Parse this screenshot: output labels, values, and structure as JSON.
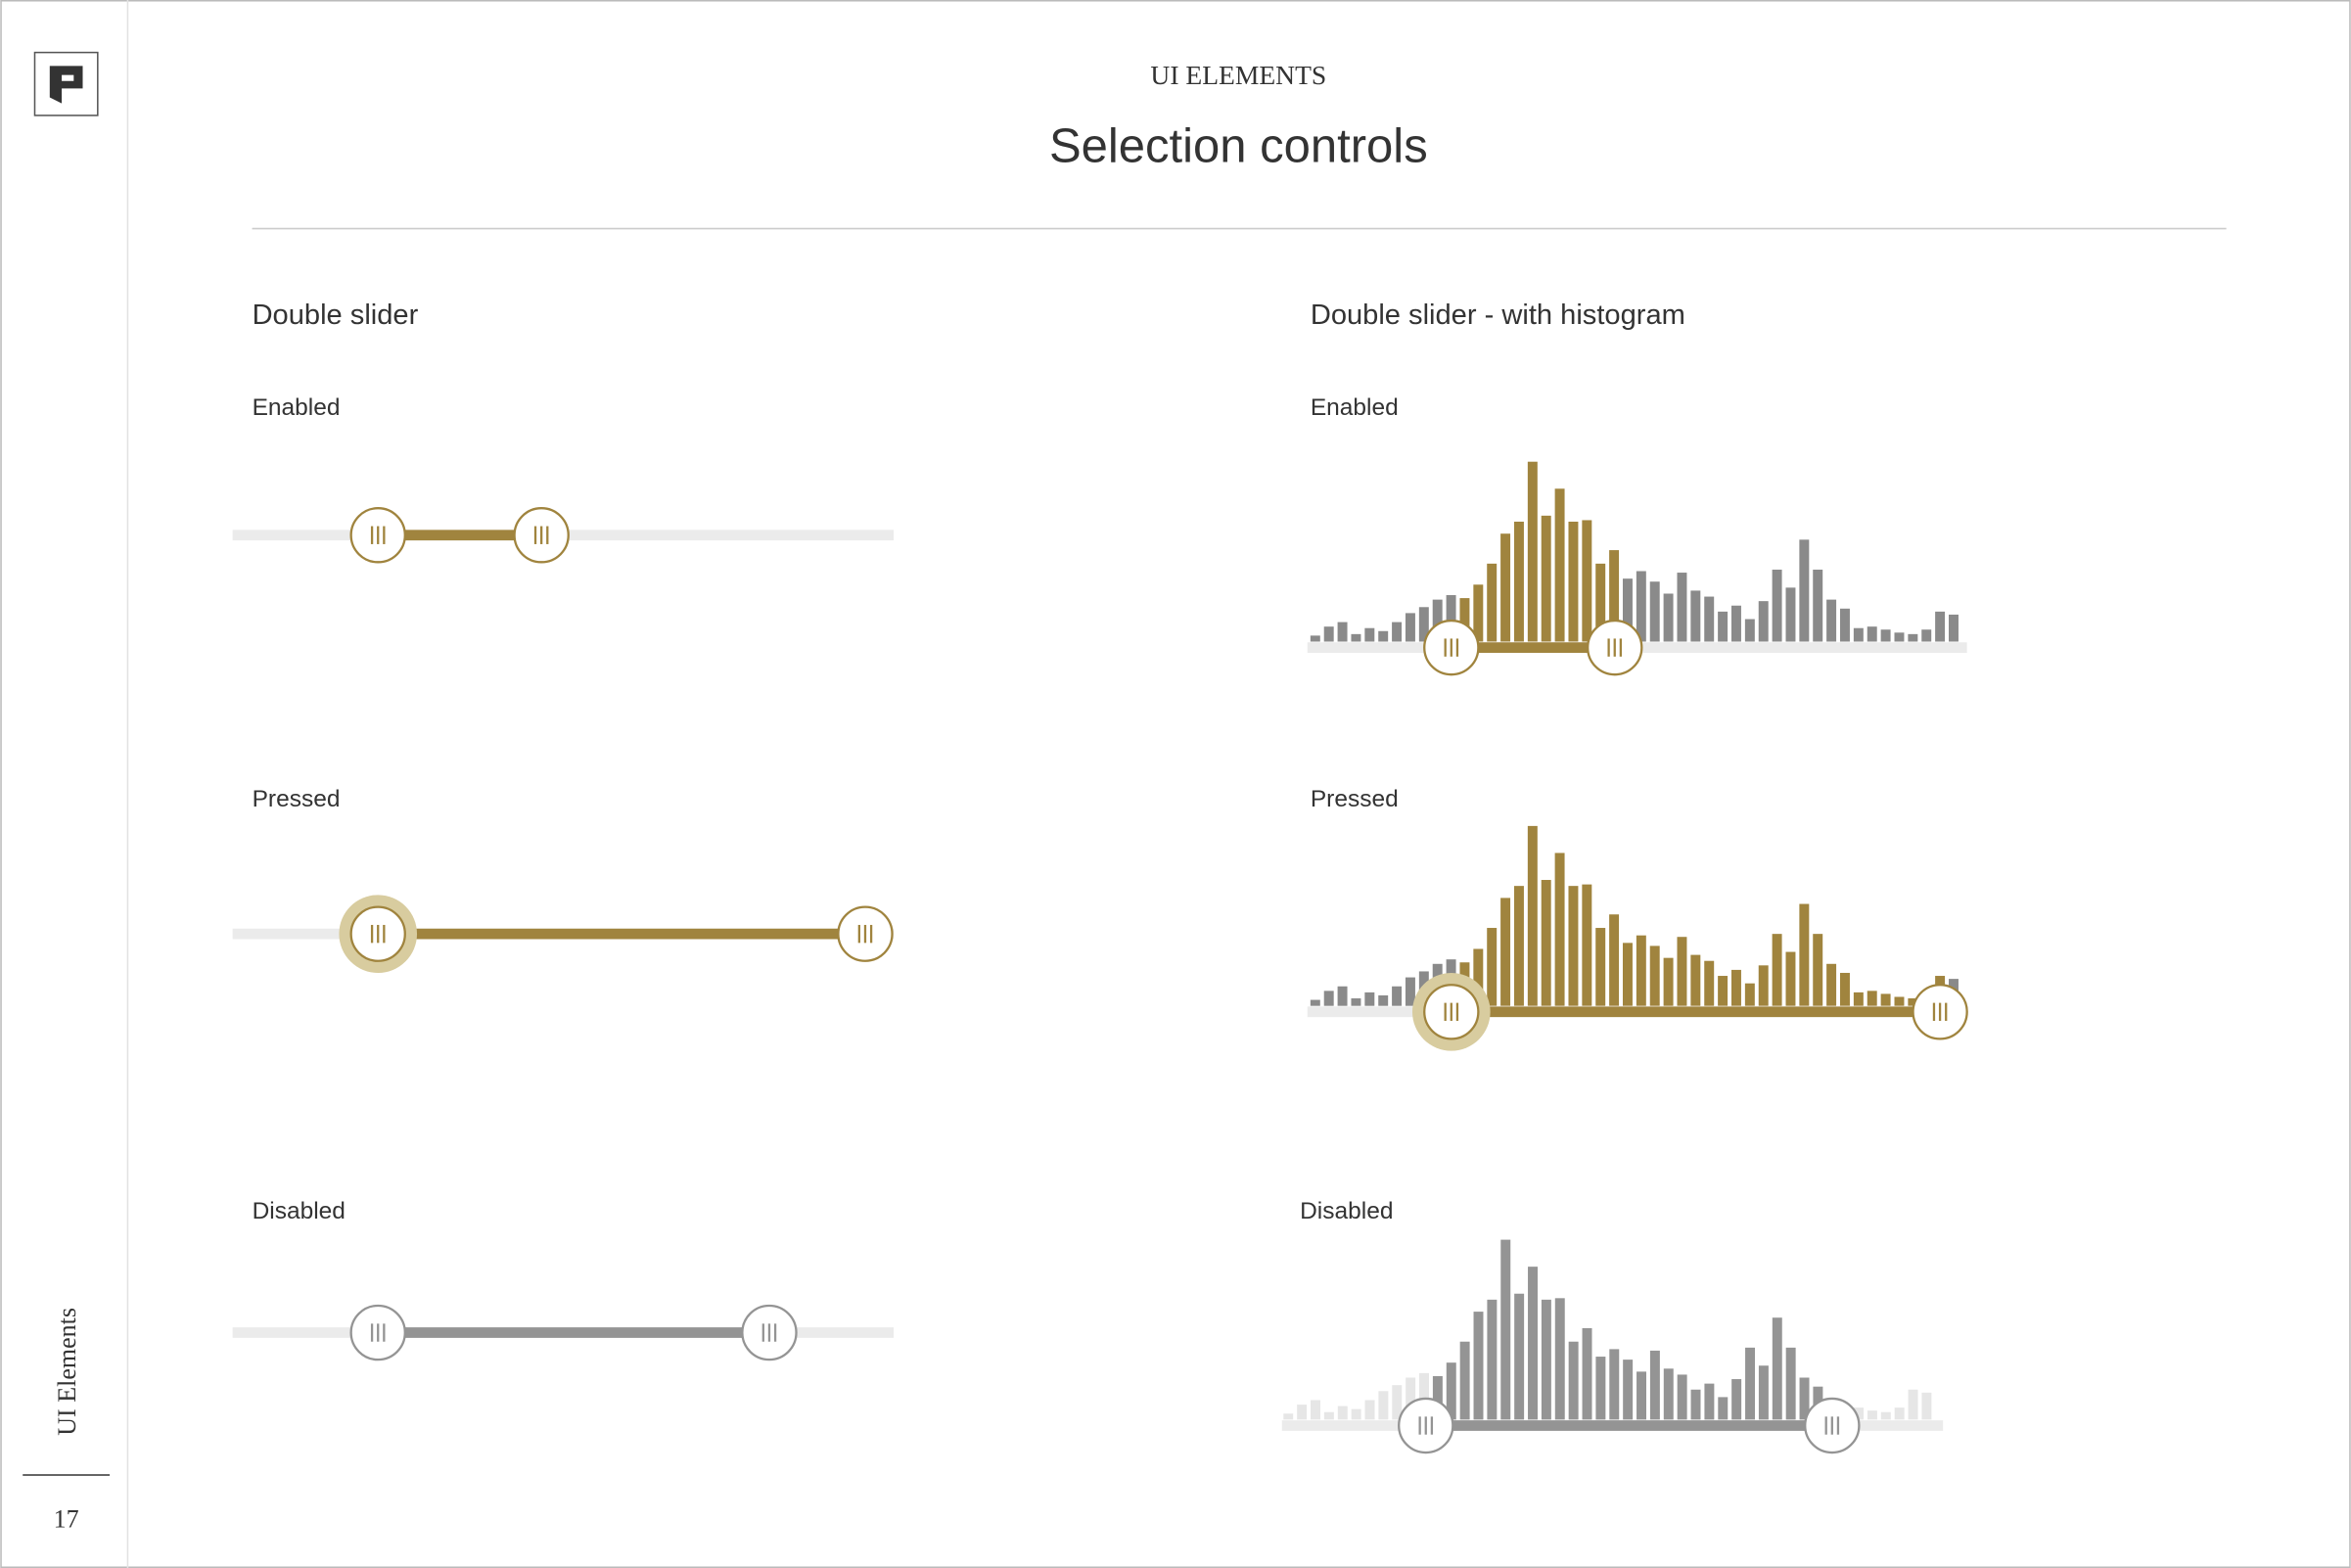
{
  "header": {
    "section": "UI ELEMENTS",
    "title": "Selection controls"
  },
  "sidebar": {
    "label": "UI Elements",
    "page": 17
  },
  "columns": [
    {
      "title": "Double slider",
      "states": [
        "Enabled",
        "Pressed",
        "Disabled"
      ]
    },
    {
      "title": "Double slider - with histogram",
      "states": [
        "Enabled",
        "Pressed",
        "Disabled"
      ]
    }
  ],
  "histogram": [
    4,
    10,
    13,
    5,
    9,
    7,
    13,
    19,
    23,
    28,
    31,
    29,
    38,
    52,
    72,
    80,
    120,
    84,
    102,
    80,
    81,
    52,
    61,
    42,
    47,
    40,
    32,
    46,
    34,
    30,
    20,
    24,
    15,
    27,
    48,
    36,
    68,
    48,
    28,
    22,
    9,
    10,
    8,
    6,
    5,
    8,
    20,
    18
  ]
}
